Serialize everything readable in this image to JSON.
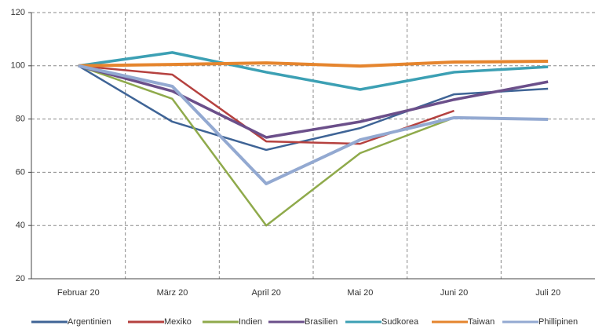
{
  "chart_data": {
    "type": "line",
    "categories": [
      "Februar 20",
      "März 20",
      "April 20",
      "Mai 20",
      "Juni 20",
      "Juli 20"
    ],
    "series": [
      {
        "name": "Argentinien",
        "color": "#3f6496",
        "values": [
          100,
          79,
          68.4,
          76.6,
          89.3,
          91.4
        ]
      },
      {
        "name": "Mexiko",
        "color": "#b5413f",
        "values": [
          100,
          96.7,
          71.6,
          70.7,
          83.1,
          null
        ]
      },
      {
        "name": "Indien",
        "color": "#8faa4b",
        "values": [
          100,
          87.6,
          40,
          67.2,
          80.5,
          null
        ]
      },
      {
        "name": "Brasilien",
        "color": "#6b4f8a",
        "values": [
          100,
          90.5,
          73.1,
          79,
          87.3,
          94
        ]
      },
      {
        "name": "Sudkorea",
        "color": "#3ca0b4",
        "values": [
          100,
          105,
          97.6,
          91.1,
          97.6,
          99.6
        ]
      },
      {
        "name": "Taiwan",
        "color": "#e5852e",
        "values": [
          100,
          100.5,
          101.1,
          99.9,
          101.4,
          101.7
        ]
      },
      {
        "name": "Phillipinen",
        "color": "#93a9d1",
        "values": [
          100,
          92.3,
          55.7,
          72.2,
          80.5,
          79.9
        ]
      }
    ],
    "ylim": [
      20,
      120
    ],
    "yticks": [
      20,
      40,
      60,
      80,
      100,
      120
    ],
    "grid": true,
    "legend": "bottom"
  }
}
